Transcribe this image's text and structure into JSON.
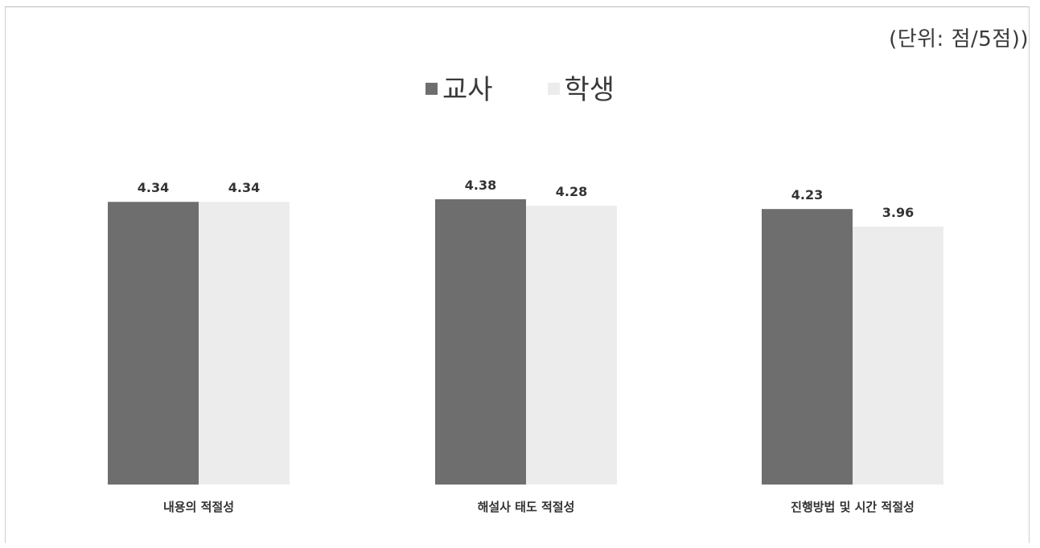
{
  "chart_data": {
    "type": "bar",
    "title": "",
    "unit_note": "(단위: 점/5점))",
    "xlabel": "",
    "ylabel": "",
    "categories": [
      "내용의 적절성",
      "해설사 태도 적절성",
      "진행방법 및 시간 적절성"
    ],
    "series": [
      {
        "name": "교사",
        "values": [
          4.34,
          4.38,
          4.23
        ],
        "labels": [
          "4.34",
          "4.38",
          "4.23"
        ],
        "color": "#6e6e6e"
      },
      {
        "name": "학생",
        "values": [
          4.34,
          4.28,
          3.96
        ],
        "labels": [
          "4.34",
          "4.28",
          "3.96"
        ],
        "color": "#ececec"
      }
    ],
    "ylim": [
      0,
      4.38
    ],
    "grid": false,
    "legend_position": "top-center"
  }
}
